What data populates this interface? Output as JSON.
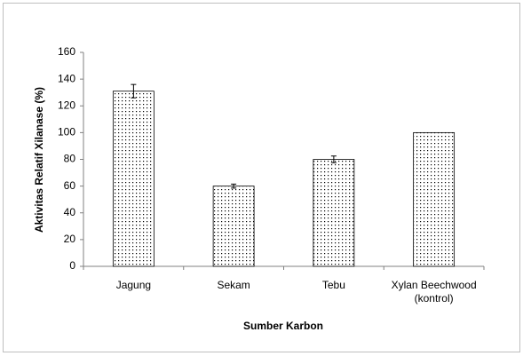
{
  "chart_data": {
    "type": "bar",
    "x_label": "Sumber Karbon",
    "y_label": "Aktivitas Relatif Xilanase (%)",
    "categories": [
      "Jagung",
      "Sekam",
      "Tebu",
      "Xylan Beechwood (kontrol)"
    ],
    "values": [
      131,
      60,
      80,
      100
    ],
    "errors": [
      5,
      1.5,
      2.5,
      0
    ],
    "color": "#000000",
    "ylim": [
      0,
      160
    ],
    "yticks": [
      0,
      20,
      40,
      60,
      80,
      100,
      120,
      140,
      160
    ],
    "grid": false
  }
}
